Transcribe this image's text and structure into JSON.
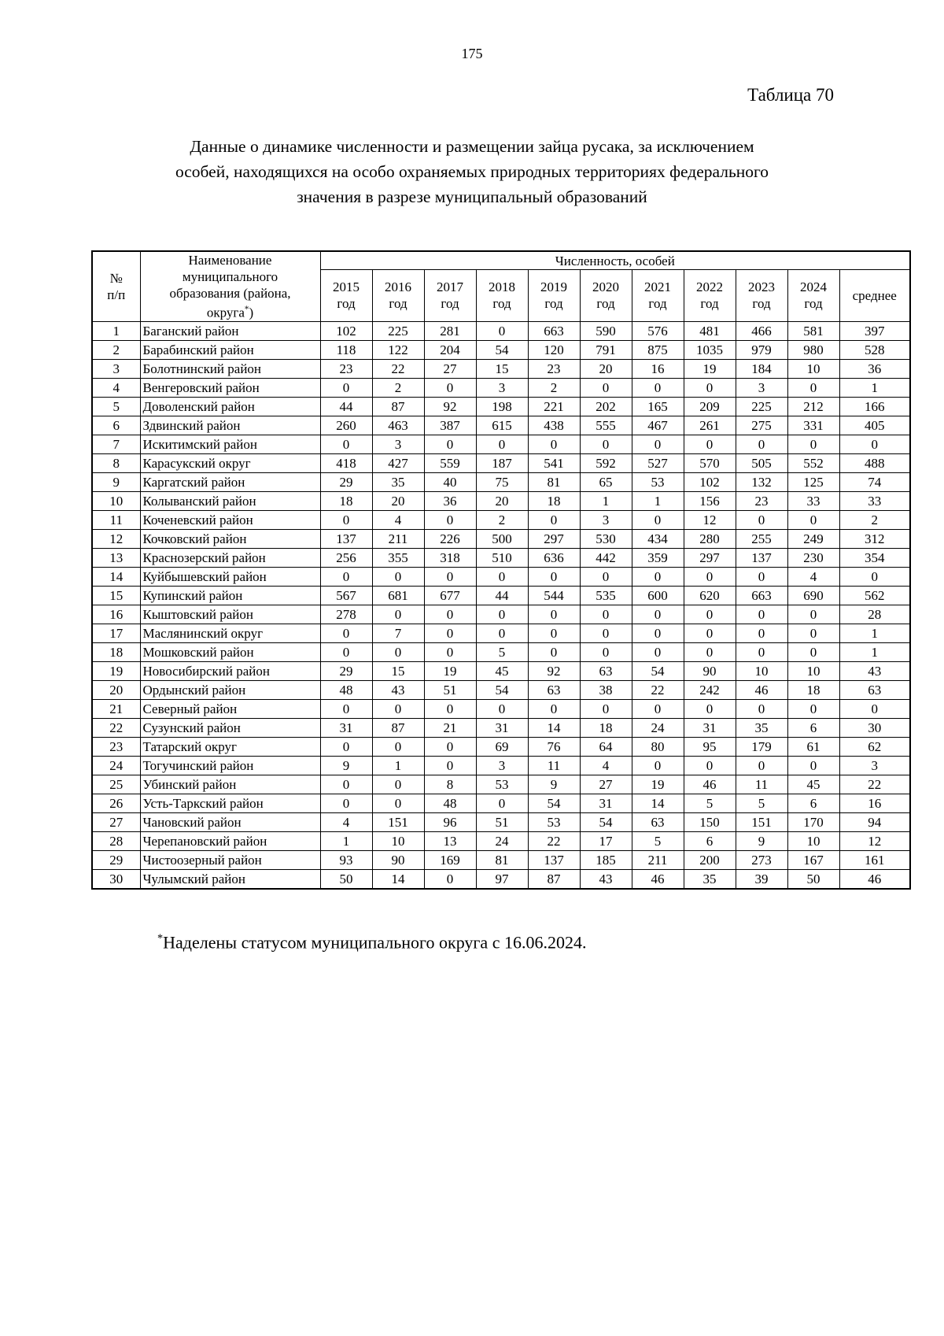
{
  "page": {
    "number": "175",
    "table_label": "Таблица 70",
    "title_lines": [
      "Данные о динамике численности и размещении зайца русака, за исключением",
      "особей, находящихся на особо охраняемых природных территориях федерального",
      "значения в разрезе муниципальный образований"
    ]
  },
  "table": {
    "header": {
      "num_line1": "№",
      "num_line2": "п/п",
      "name_line1": "Наименование",
      "name_line2": "муниципального",
      "name_line3": "образования (района,",
      "name_line4_pre": "округа",
      "name_line4_marker": "*",
      "name_line4_post": ")",
      "group": "Численность, особей",
      "years": [
        "2015",
        "2016",
        "2017",
        "2018",
        "2019",
        "2020",
        "2021",
        "2022",
        "2023",
        "2024"
      ],
      "year_word": "год",
      "avg": "среднее"
    },
    "rows": [
      {
        "n": "1",
        "name": "Баганский район",
        "values": [
          102,
          225,
          281,
          0,
          663,
          590,
          576,
          481,
          466,
          581
        ],
        "avg": 397
      },
      {
        "n": "2",
        "name": "Барабинский район",
        "values": [
          118,
          122,
          204,
          54,
          120,
          791,
          875,
          1035,
          979,
          980
        ],
        "avg": 528
      },
      {
        "n": "3",
        "name": "Болотнинский район",
        "values": [
          23,
          22,
          27,
          15,
          23,
          20,
          16,
          19,
          184,
          10
        ],
        "avg": 36
      },
      {
        "n": "4",
        "name": "Венгеровский район",
        "values": [
          0,
          2,
          0,
          3,
          2,
          0,
          0,
          0,
          3,
          0
        ],
        "avg": 1
      },
      {
        "n": "5",
        "name": "Доволенский район",
        "values": [
          44,
          87,
          92,
          198,
          221,
          202,
          165,
          209,
          225,
          212
        ],
        "avg": 166
      },
      {
        "n": "6",
        "name": "Здвинский район",
        "values": [
          260,
          463,
          387,
          615,
          438,
          555,
          467,
          261,
          275,
          331
        ],
        "avg": 405
      },
      {
        "n": "7",
        "name": "Искитимский район",
        "values": [
          0,
          3,
          0,
          0,
          0,
          0,
          0,
          0,
          0,
          0
        ],
        "avg": 0
      },
      {
        "n": "8",
        "name": "Карасукский округ",
        "values": [
          418,
          427,
          559,
          187,
          541,
          592,
          527,
          570,
          505,
          552
        ],
        "avg": 488
      },
      {
        "n": "9",
        "name": "Каргатский район",
        "values": [
          29,
          35,
          40,
          75,
          81,
          65,
          53,
          102,
          132,
          125
        ],
        "avg": 74
      },
      {
        "n": "10",
        "name": "Колыванский район",
        "values": [
          18,
          20,
          36,
          20,
          18,
          1,
          1,
          156,
          23,
          33
        ],
        "avg": 33
      },
      {
        "n": "11",
        "name": "Коченевский район",
        "values": [
          0,
          4,
          0,
          2,
          0,
          3,
          0,
          12,
          0,
          0
        ],
        "avg": 2
      },
      {
        "n": "12",
        "name": "Кочковский район",
        "values": [
          137,
          211,
          226,
          500,
          297,
          530,
          434,
          280,
          255,
          249
        ],
        "avg": 312
      },
      {
        "n": "13",
        "name": "Краснозерский район",
        "values": [
          256,
          355,
          318,
          510,
          636,
          442,
          359,
          297,
          137,
          230
        ],
        "avg": 354
      },
      {
        "n": "14",
        "name": "Куйбышевский район",
        "values": [
          0,
          0,
          0,
          0,
          0,
          0,
          0,
          0,
          0,
          4
        ],
        "avg": 0
      },
      {
        "n": "15",
        "name": "Купинский район",
        "values": [
          567,
          681,
          677,
          44,
          544,
          535,
          600,
          620,
          663,
          690
        ],
        "avg": 562
      },
      {
        "n": "16",
        "name": "Кыштовский район",
        "values": [
          278,
          0,
          0,
          0,
          0,
          0,
          0,
          0,
          0,
          0
        ],
        "avg": 28
      },
      {
        "n": "17",
        "name": "Маслянинский округ",
        "values": [
          0,
          7,
          0,
          0,
          0,
          0,
          0,
          0,
          0,
          0
        ],
        "avg": 1
      },
      {
        "n": "18",
        "name": "Мошковский район",
        "values": [
          0,
          0,
          0,
          5,
          0,
          0,
          0,
          0,
          0,
          0
        ],
        "avg": 1
      },
      {
        "n": "19",
        "name": "Новосибирский район",
        "values": [
          29,
          15,
          19,
          45,
          92,
          63,
          54,
          90,
          10,
          10
        ],
        "avg": 43
      },
      {
        "n": "20",
        "name": "Ордынский район",
        "values": [
          48,
          43,
          51,
          54,
          63,
          38,
          22,
          242,
          46,
          18
        ],
        "avg": 63
      },
      {
        "n": "21",
        "name": "Северный район",
        "values": [
          0,
          0,
          0,
          0,
          0,
          0,
          0,
          0,
          0,
          0
        ],
        "avg": 0
      },
      {
        "n": "22",
        "name": "Сузунский район",
        "values": [
          31,
          87,
          21,
          31,
          14,
          18,
          24,
          31,
          35,
          6
        ],
        "avg": 30
      },
      {
        "n": "23",
        "name": "Татарский округ",
        "values": [
          0,
          0,
          0,
          69,
          76,
          64,
          80,
          95,
          179,
          61
        ],
        "avg": 62
      },
      {
        "n": "24",
        "name": "Тогучинский район",
        "values": [
          9,
          1,
          0,
          3,
          11,
          4,
          0,
          0,
          0,
          0
        ],
        "avg": 3
      },
      {
        "n": "25",
        "name": "Убинский район",
        "values": [
          0,
          0,
          8,
          53,
          9,
          27,
          19,
          46,
          11,
          45
        ],
        "avg": 22
      },
      {
        "n": "26",
        "name": "Усть-Таркский район",
        "values": [
          0,
          0,
          48,
          0,
          54,
          31,
          14,
          5,
          5,
          6
        ],
        "avg": 16
      },
      {
        "n": "27",
        "name": "Чановский район",
        "values": [
          4,
          151,
          96,
          51,
          53,
          54,
          63,
          150,
          151,
          170
        ],
        "avg": 94
      },
      {
        "n": "28",
        "name": "Черепановский район",
        "values": [
          1,
          10,
          13,
          24,
          22,
          17,
          5,
          6,
          9,
          10
        ],
        "avg": 12
      },
      {
        "n": "29",
        "name": "Чистоозерный район",
        "values": [
          93,
          90,
          169,
          81,
          137,
          185,
          211,
          200,
          273,
          167
        ],
        "avg": 161
      },
      {
        "n": "30",
        "name": "Чулымский район",
        "values": [
          50,
          14,
          0,
          97,
          87,
          43,
          46,
          35,
          39,
          50
        ],
        "avg": 46
      }
    ]
  },
  "footnote": {
    "marker": "*",
    "text": "Наделены статусом муниципального округа с 16.06.2024."
  }
}
